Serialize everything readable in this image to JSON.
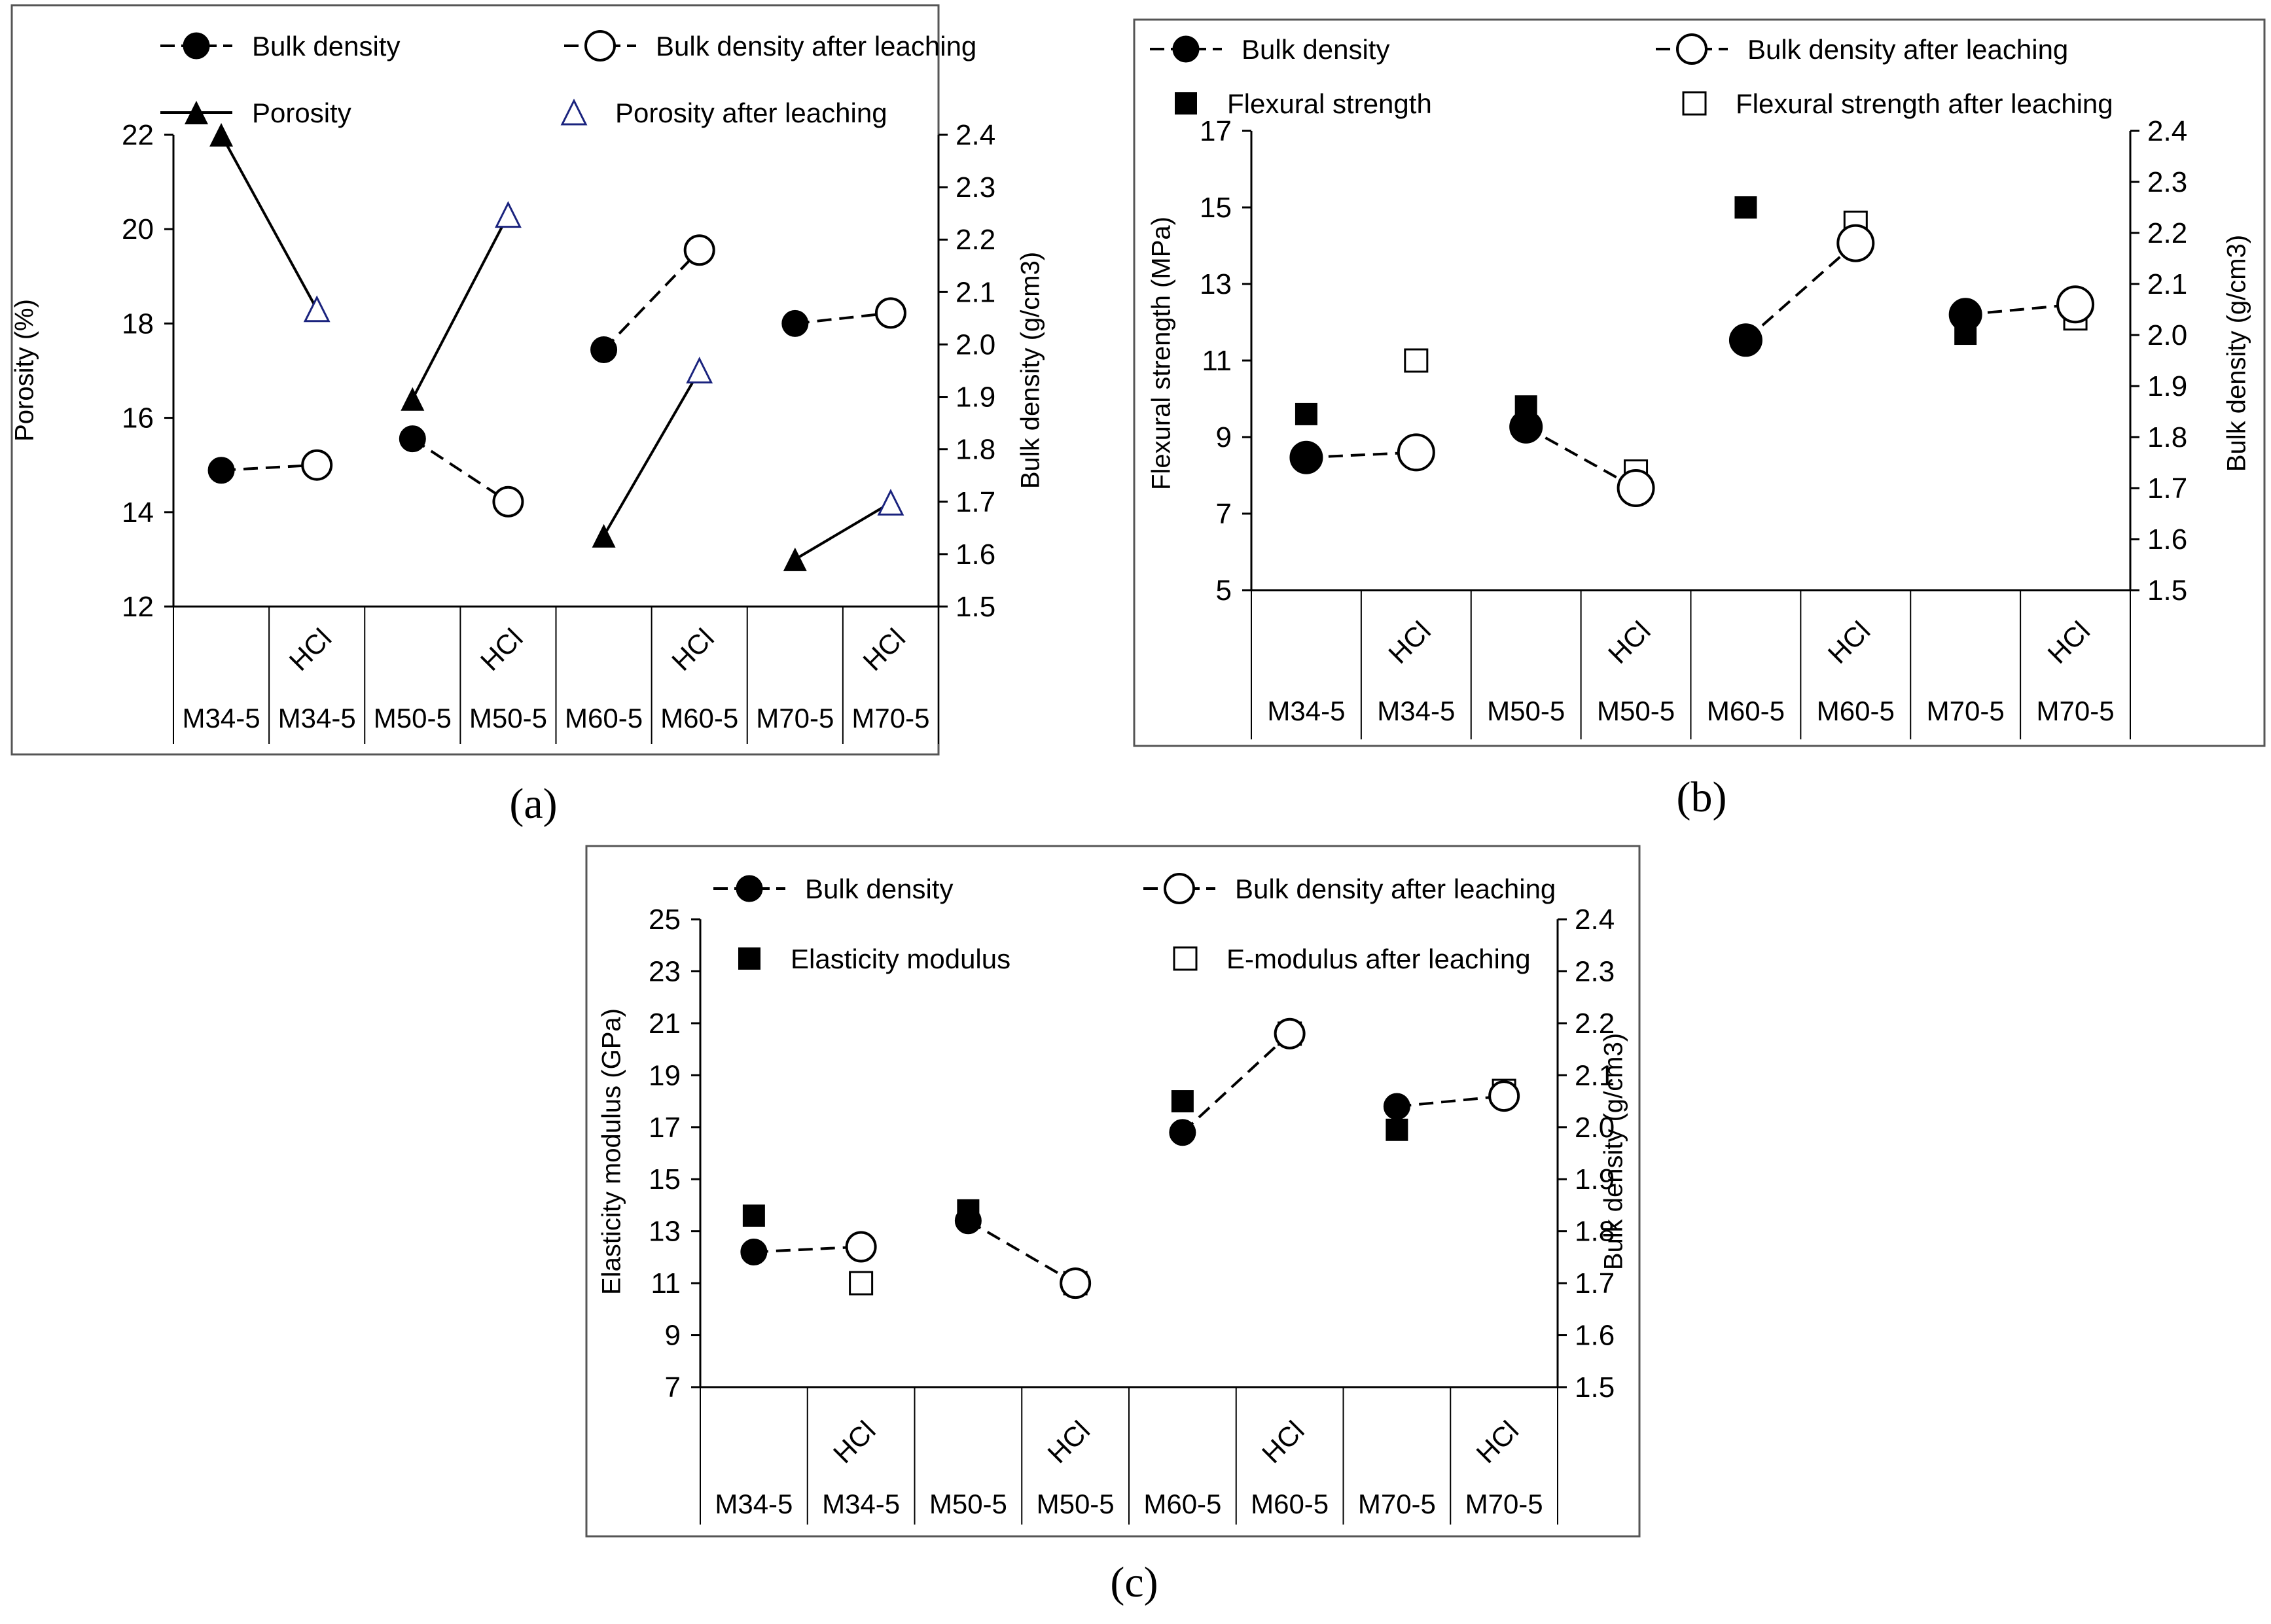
{
  "figure": {
    "panels": [
      {
        "id": "a",
        "caption": "(a)"
      },
      {
        "id": "b",
        "caption": "(b)"
      },
      {
        "id": "c",
        "caption": "(c)"
      }
    ]
  },
  "chart_data": [
    {
      "panel": "a",
      "type": "scatter",
      "categories": [
        "M34-5",
        "M34-5",
        "M50-5",
        "M50-5",
        "M60-5",
        "M60-5",
        "M70-5",
        "M70-5"
      ],
      "category_sublabels": [
        "",
        "HCl",
        "",
        "HCl",
        "",
        "HCl",
        "",
        "HCl"
      ],
      "ylabel": "Porosity (%)",
      "y2label": "Bulk density (g/cm3)",
      "ylim": [
        12,
        22
      ],
      "yticks": [
        12,
        14,
        16,
        18,
        20,
        22
      ],
      "y2lim": [
        1.5,
        2.4
      ],
      "y2ticks": [
        1.5,
        1.6,
        1.7,
        1.8,
        1.9,
        2.0,
        2.1,
        2.2,
        2.3,
        2.4
      ],
      "legend": {
        "placement": "top",
        "items": [
          "Bulk density",
          "Bulk density after leaching",
          "Porosity",
          "Porosity after leaching"
        ]
      },
      "series": [
        {
          "name": "Bulk density",
          "axis": "right",
          "marker": "filled-circle",
          "indices": [
            0,
            2,
            4,
            6
          ],
          "values": [
            1.76,
            1.82,
            1.99,
            2.04
          ]
        },
        {
          "name": "Bulk density after leaching",
          "axis": "right",
          "marker": "open-circle",
          "indices": [
            1,
            3,
            5,
            7
          ],
          "values": [
            1.77,
            1.7,
            2.18,
            2.06
          ]
        },
        {
          "name": "Porosity",
          "axis": "left",
          "marker": "filled-triangle",
          "indices": [
            0,
            2,
            4,
            6
          ],
          "values": [
            22.0,
            16.4,
            13.5,
            13.0
          ]
        },
        {
          "name": "Porosity after leaching",
          "axis": "left",
          "marker": "open-triangle",
          "indices": [
            1,
            3,
            5,
            7
          ],
          "values": [
            18.3,
            20.3,
            17.0,
            14.2
          ]
        }
      ],
      "connectors": [
        {
          "from": "Bulk density",
          "to": "Bulk density after leaching",
          "style": "dashed"
        },
        {
          "from": "Porosity",
          "to": "Porosity after leaching",
          "style": "solid"
        }
      ]
    },
    {
      "panel": "b",
      "type": "scatter",
      "categories": [
        "M34-5",
        "M34-5",
        "M50-5",
        "M50-5",
        "M60-5",
        "M60-5",
        "M70-5",
        "M70-5"
      ],
      "category_sublabels": [
        "",
        "HCl",
        "",
        "HCl",
        "",
        "HCl",
        "",
        "HCl"
      ],
      "ylabel": "Flexural strength (MPa)",
      "y2label": "Bulk density (g/cm3)",
      "ylim": [
        5,
        17
      ],
      "yticks": [
        5,
        7,
        9,
        11,
        13,
        15,
        17
      ],
      "y2lim": [
        1.5,
        2.4
      ],
      "y2ticks": [
        1.5,
        1.6,
        1.7,
        1.8,
        1.9,
        2.0,
        2.1,
        2.2,
        2.3,
        2.4
      ],
      "legend": {
        "placement": "top",
        "items": [
          "Bulk density",
          "Bulk density after leaching",
          "Flexural strength",
          "Flexural strength after leaching"
        ]
      },
      "series": [
        {
          "name": "Bulk density",
          "axis": "right",
          "marker": "filled-circle",
          "indices": [
            0,
            2,
            4,
            6
          ],
          "values": [
            1.76,
            1.82,
            1.99,
            2.04
          ]
        },
        {
          "name": "Bulk density after leaching",
          "axis": "right",
          "marker": "open-circle",
          "indices": [
            1,
            3,
            5,
            7
          ],
          "values": [
            1.77,
            1.7,
            2.18,
            2.06
          ]
        },
        {
          "name": "Flexural strength",
          "axis": "left",
          "marker": "filled-square",
          "indices": [
            0,
            2,
            4,
            6
          ],
          "values": [
            9.6,
            9.8,
            15.0,
            11.7
          ]
        },
        {
          "name": "Flexural strength after leaching",
          "axis": "left",
          "marker": "open-square",
          "indices": [
            1,
            3,
            5,
            7
          ],
          "values": [
            11.0,
            8.1,
            14.6,
            12.1
          ]
        }
      ],
      "connectors": [
        {
          "from": "Bulk density",
          "to": "Bulk density after leaching",
          "style": "dashed"
        }
      ]
    },
    {
      "panel": "c",
      "type": "scatter",
      "categories": [
        "M34-5",
        "M34-5",
        "M50-5",
        "M50-5",
        "M60-5",
        "M60-5",
        "M70-5",
        "M70-5"
      ],
      "category_sublabels": [
        "",
        "HCl",
        "",
        "HCl",
        "",
        "HCl",
        "",
        "HCl"
      ],
      "ylabel": "Elasticity modulus (GPa)",
      "y2label": "Bulk density (g/cm3)",
      "ylim": [
        7,
        25
      ],
      "yticks": [
        7,
        9,
        11,
        13,
        15,
        17,
        19,
        21,
        23,
        25
      ],
      "y2lim": [
        1.5,
        2.4
      ],
      "y2ticks": [
        1.5,
        1.6,
        1.7,
        1.8,
        1.9,
        2.0,
        2.1,
        2.2,
        2.3,
        2.4
      ],
      "legend": {
        "placement": "top",
        "items": [
          "Bulk density",
          "Bulk density after leaching",
          "Elasticity modulus",
          "E-modulus after leaching"
        ]
      },
      "series": [
        {
          "name": "Bulk density",
          "axis": "right",
          "marker": "filled-circle",
          "indices": [
            0,
            2,
            4,
            6
          ],
          "values": [
            1.76,
            1.82,
            1.99,
            2.04
          ]
        },
        {
          "name": "Bulk density after leaching",
          "axis": "right",
          "marker": "open-circle",
          "indices": [
            1,
            3,
            5,
            7
          ],
          "values": [
            1.77,
            1.7,
            2.18,
            2.06
          ]
        },
        {
          "name": "Elasticity modulus",
          "axis": "left",
          "marker": "filled-square",
          "indices": [
            0,
            2,
            4,
            6
          ],
          "values": [
            13.6,
            13.8,
            18.0,
            16.9
          ]
        },
        {
          "name": "E-modulus after leaching",
          "axis": "left",
          "marker": "open-square",
          "indices": [
            1,
            3,
            5,
            7
          ],
          "values": [
            11.0,
            11.0,
            20.6,
            18.4
          ]
        }
      ],
      "connectors": [
        {
          "from": "Bulk density",
          "to": "Bulk density after leaching",
          "style": "dashed"
        }
      ]
    }
  ]
}
